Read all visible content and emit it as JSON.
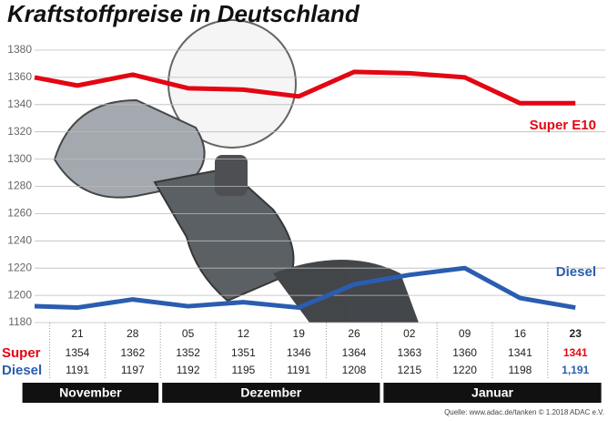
{
  "chart_data": {
    "type": "line",
    "title": "Kraftstoffpreise in Deutschland",
    "categories": [
      null,
      "21",
      "28",
      "05",
      "12",
      "19",
      "26",
      "02",
      "09",
      "16",
      "23"
    ],
    "series": [
      {
        "name": "Super E10",
        "color": "#e30613",
        "values": [
          1360,
          1354,
          1362,
          1352,
          1351,
          1346,
          1364,
          1363,
          1360,
          1341,
          1341
        ]
      },
      {
        "name": "Diesel",
        "color": "#2a5db0",
        "values": [
          1192,
          1191,
          1197,
          1192,
          1195,
          1191,
          1208,
          1215,
          1220,
          1198,
          1191
        ],
        "value_labels": [
          null,
          "1191",
          "1197",
          "1192",
          "1195",
          "1191",
          "1208",
          "1215",
          "1220",
          "1198",
          "1,191"
        ]
      }
    ],
    "row_labels": [
      "Super",
      "Diesel"
    ],
    "month_groups": [
      {
        "label": "November",
        "count": 2
      },
      {
        "label": "Dezember",
        "count": 4
      },
      {
        "label": "Januar",
        "count": 4
      }
    ],
    "ylim": [
      1180,
      1380
    ],
    "yticks": [
      1180,
      1200,
      1220,
      1240,
      1260,
      1280,
      1300,
      1320,
      1340,
      1360,
      1380
    ],
    "grid": true,
    "source": "Quelle: www.adac.de/tanken  © 1.2018  ADAC e.V."
  }
}
